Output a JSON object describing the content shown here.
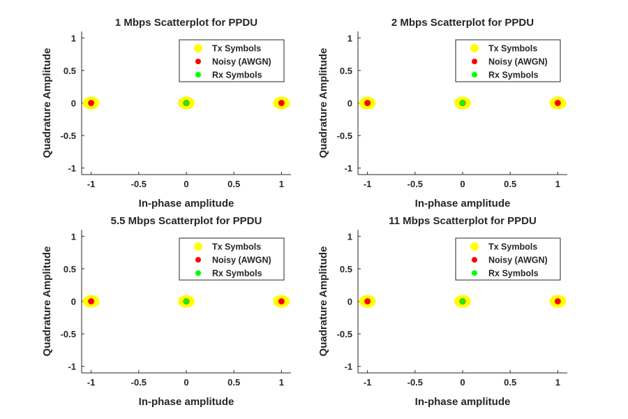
{
  "figure": {
    "background": "#ffffff"
  },
  "style": {
    "tx_color": "#ffff00",
    "noisy_color": "#ff0000",
    "rx_color": "#00ff00",
    "axis_color": "#262626"
  },
  "chart_data": [
    {
      "type": "scatter",
      "title": "1 Mbps Scatterplot for PPDU",
      "xlabel": "In-phase amplitude",
      "ylabel": "Quadrature Amplitude",
      "xlim": [
        -1.1,
        1.1
      ],
      "ylim": [
        -1.1,
        1.1
      ],
      "xticks": [
        -1,
        -0.5,
        0,
        0.5,
        1
      ],
      "yticks": [
        -1,
        -0.5,
        0,
        0.5,
        1
      ],
      "grid": false,
      "legend_position": "top-right",
      "series": [
        {
          "name": "Tx Symbols",
          "x": [
            -1,
            0,
            1
          ],
          "y": [
            0,
            0,
            0
          ]
        },
        {
          "name": "Noisy (AWGN)",
          "x": [
            -1,
            0,
            1
          ],
          "y": [
            0,
            0,
            0
          ]
        },
        {
          "name": "Rx Symbols",
          "x": [
            0
          ],
          "y": [
            0
          ]
        }
      ]
    },
    {
      "type": "scatter",
      "title": "2 Mbps Scatterplot for PPDU",
      "xlabel": "In-phase amplitude",
      "ylabel": "Quadrature Amplitude",
      "xlim": [
        -1.1,
        1.1
      ],
      "ylim": [
        -1.1,
        1.1
      ],
      "xticks": [
        -1,
        -0.5,
        0,
        0.5,
        1
      ],
      "yticks": [
        -1,
        -0.5,
        0,
        0.5,
        1
      ],
      "grid": false,
      "legend_position": "top-right",
      "series": [
        {
          "name": "Tx Symbols",
          "x": [
            -1,
            0,
            1
          ],
          "y": [
            0,
            0,
            0
          ]
        },
        {
          "name": "Noisy (AWGN)",
          "x": [
            -1,
            0,
            1
          ],
          "y": [
            0,
            0,
            0
          ]
        },
        {
          "name": "Rx Symbols",
          "x": [
            0
          ],
          "y": [
            0
          ]
        }
      ]
    },
    {
      "type": "scatter",
      "title": "5.5 Mbps Scatterplot for PPDU",
      "xlabel": "In-phase amplitude",
      "ylabel": "Quadrature Amplitude",
      "xlim": [
        -1.1,
        1.1
      ],
      "ylim": [
        -1.1,
        1.1
      ],
      "xticks": [
        -1,
        -0.5,
        0,
        0.5,
        1
      ],
      "yticks": [
        -1,
        -0.5,
        0,
        0.5,
        1
      ],
      "grid": false,
      "legend_position": "top-right",
      "series": [
        {
          "name": "Tx Symbols",
          "x": [
            -1,
            0,
            1
          ],
          "y": [
            0,
            0,
            0
          ]
        },
        {
          "name": "Noisy (AWGN)",
          "x": [
            -1,
            0,
            1
          ],
          "y": [
            0,
            0,
            0
          ]
        },
        {
          "name": "Rx Symbols",
          "x": [
            0
          ],
          "y": [
            0
          ]
        }
      ]
    },
    {
      "type": "scatter",
      "title": "11 Mbps Scatterplot for PPDU",
      "xlabel": "In-phase amplitude",
      "ylabel": "Quadrature Amplitude",
      "xlim": [
        -1.1,
        1.1
      ],
      "ylim": [
        -1.1,
        1.1
      ],
      "xticks": [
        -1,
        -0.5,
        0,
        0.5,
        1
      ],
      "yticks": [
        -1,
        -0.5,
        0,
        0.5,
        1
      ],
      "grid": false,
      "legend_position": "top-right",
      "series": [
        {
          "name": "Tx Symbols",
          "x": [
            -1,
            0,
            1
          ],
          "y": [
            0,
            0,
            0
          ]
        },
        {
          "name": "Noisy (AWGN)",
          "x": [
            -1,
            0,
            1
          ],
          "y": [
            0,
            0,
            0
          ]
        },
        {
          "name": "Rx Symbols",
          "x": [
            0
          ],
          "y": [
            0
          ]
        }
      ]
    }
  ]
}
